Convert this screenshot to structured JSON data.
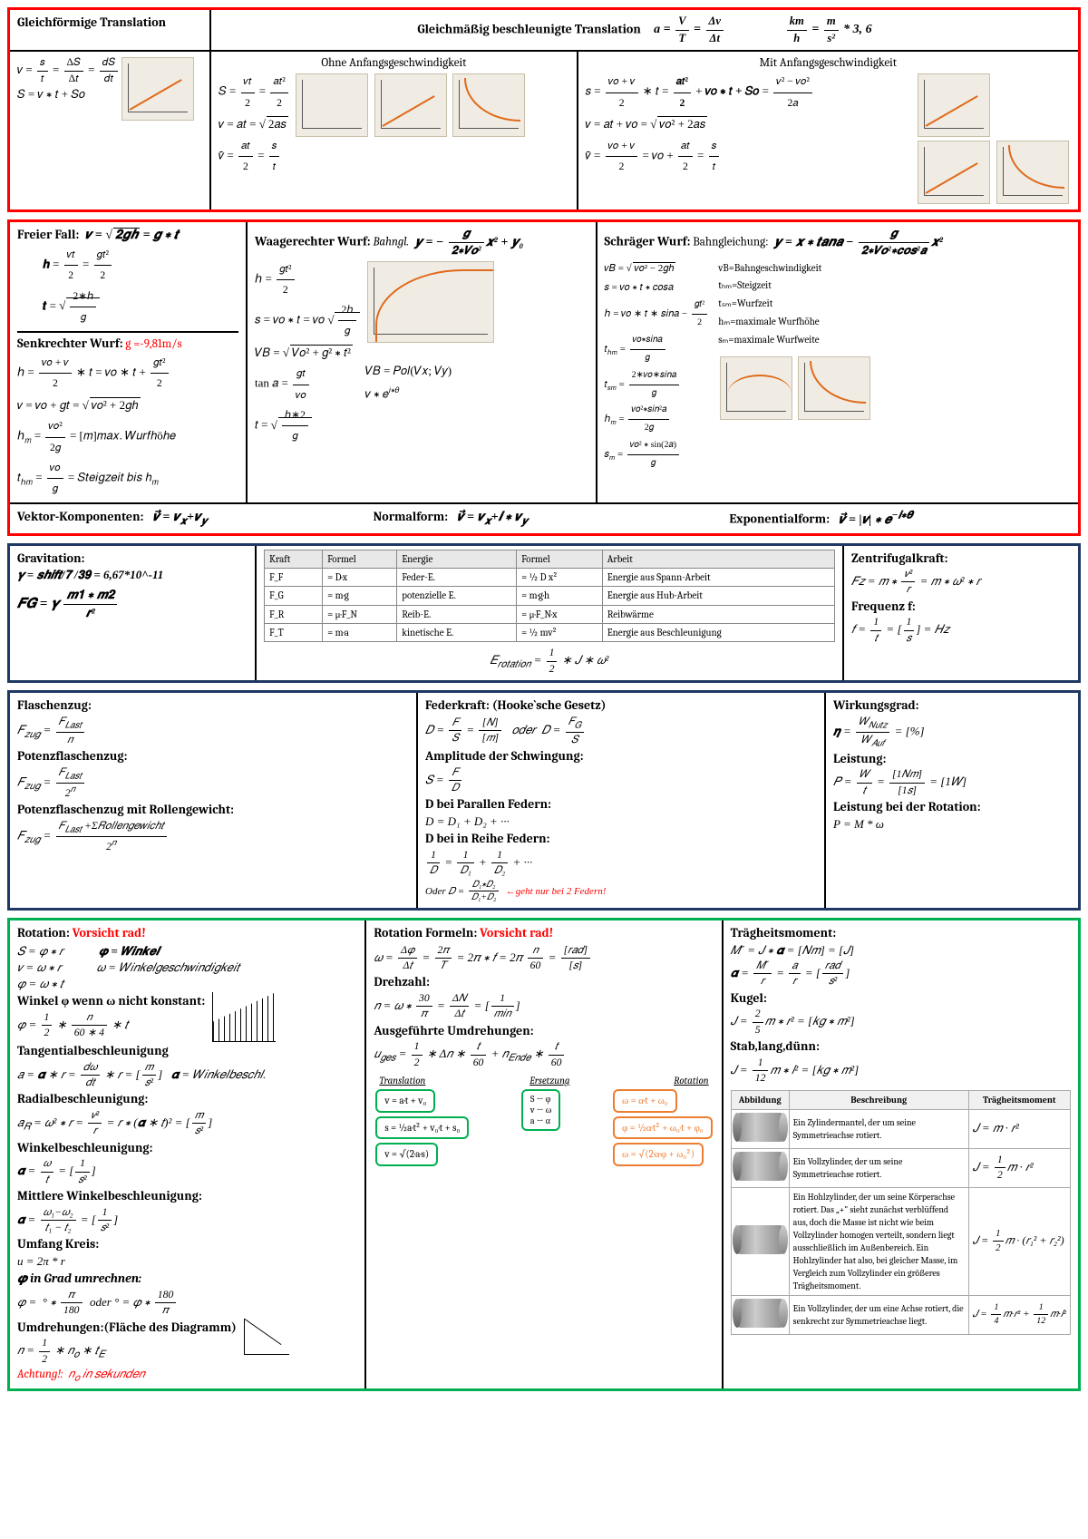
{
  "sec_a": {
    "h1": "Gleichförmige Translation",
    "h2": "Gleichmäßig beschleunigte Translation",
    "h2_f": "a = V/T = Δv/Δt",
    "h2_u": "km/h = m/s² * 3,6",
    "c1_f1": "v = s/t = ΔS/Δt = dS/dt",
    "c1_f2": "S = v * t + So",
    "c2_h": "Ohne Anfangsgeschwindigkeit",
    "c2_f1": "S = vt/2 = at²/2",
    "c2_f2": "v = at = √(2as)",
    "c2_f3": "v̄ = at/2 = s/t",
    "c3_h": "Mit Anfangsgeschwindigkeit",
    "c3_f1": "s = (vo+v)/2 * t = at²/2 + vo*t + So = (v²−vo²)/2a",
    "c3_f2": "v = at + vo = √(vo² + 2as)",
    "c3_f3": "v̄ = (vo+v)/2 = vo + at/2 = s/t"
  },
  "sec_b": {
    "c1_h1": "Freier Fall:",
    "c1_h1f": "v = √(2gh) = g * t",
    "c1_f1": "h = vt/2 = gt²/2",
    "c1_f2": "t = √(2*h/g)",
    "c1_h2": "Senkrechter Wurf:",
    "c1_h2r": "g =-9,81m/s",
    "c1_f3": "h = (vo+v)/2 * t = vo*t + gt²/2",
    "c1_f4": "v = vo + gt = √(vo² + 2gh)",
    "c1_f5": "hₘ = vo²/2g = [m] max. Wurfhöhe",
    "c1_f6": "tₕₘ = vo/g = Steigzeit bis hₘ",
    "c2_h": "Waagerechter Wurf:",
    "c2_hi": "Bahngl.",
    "c2_hf": "y = − g/(2*Vo²) x² + y₀",
    "c2_f1": "h = gt²/2",
    "c2_f2": "s = vo * t = vo √(2h/g)",
    "c2_f3": "VB = √(Vo² + g² * t²)",
    "c2_f4": "tan α = gt/vo",
    "c2_f5": "t = √(h*2/g)",
    "c2_f6": "VB = Pol(Vx; Vy)",
    "c2_f7": "v * e^(i*θ)",
    "c3_h": "Schräger Wurf:",
    "c3_hi": "Bahngleichung:",
    "c3_hf": "y = x * tanα − g/(2*Vo²*cos²α) x²",
    "c3_f1": "vB = √(vo² − 2gh)",
    "c3_l1": "vB=Bahngeschwindigkeit",
    "c3_f2": "s = vo * t * cosα",
    "c3_l2": "tₕₘ=Steigzeit",
    "c3_f3": "h = vo*t*sinα − gt²/2",
    "c3_l3": "tₛₘ=Wurfzeit",
    "c3_f4": "tₕₘ = vo*sinα / g",
    "c3_l4": "hₘ=maximale Wurfhöhe",
    "c3_f5": "tₛₘ = 2*vo*sinα / g",
    "c3_l5": "sₘ=maximale Wurfweite",
    "c3_f6": "hₘ = vo²*sin²α / 2g",
    "c3_f7": "sₘ = vo² * sin(2α) / g",
    "vec_h": "Vektor-Komponenten:",
    "vec_f": "v⃗ = vₓ+v_y",
    "nf_h": "Normalform:",
    "nf_f": "v⃗ = vₓ+i * v_y",
    "ef_h": "Exponentialform:",
    "ef_f": "v⃗ = |v| * e^(−i*θ)"
  },
  "sec_c": {
    "c1_h": "Gravitation:",
    "c1_f1": "γ = shift/7 /39 = 6,67*10^-11",
    "c1_f2": "FG = γ (m1 * m2)/r²",
    "tbl": {
      "head": [
        "Kraft",
        "Formel",
        "Energie",
        "Formel",
        "Arbeit"
      ],
      "rows": [
        [
          "F_F",
          "= D·x",
          "Feder-E.",
          "= ½ D x²",
          "Energie aus Spann-Arbeit"
        ],
        [
          "F_G",
          "= m·g",
          "potenzielle E.",
          "= m·g·h",
          "Energie aus Hub-Arbeit"
        ],
        [
          "F_R",
          "= μ·F_N",
          "Reib-E.",
          "= μ·F_N·x",
          "Reibwärme"
        ],
        [
          "F_T",
          "= m·a",
          "kinetische E.",
          "= ½ mv²",
          "Energie aus Beschleunigung"
        ]
      ],
      "below": "E_rotation = ½ * J * ω²"
    },
    "c3_h1": "Zentrifugalkraft:",
    "c3_f1": "Fz = m * v²/r = m * ω² * r",
    "c3_h2": "Frequenz f:",
    "c3_f2": "f = 1/t = [1/s] = Hz"
  },
  "sec_d": {
    "c1_h1": "Flaschenzug:",
    "c1_f1": "F_zug = F_Last / n",
    "c1_h2": "Potenzflaschenzug:",
    "c1_f2": "F_zug = F_Last / 2ⁿ",
    "c1_h3": "Potenzflaschenzug mit Rollengewicht:",
    "c1_f3": "F_zug = (F_Last + ΣRollengewicht) / 2ⁿ",
    "c2_h": "Federkraft: (Hooke`sche Gesetz)",
    "c2_f1": "D = F/S = [N]/[m]    oder   D = F_G/S",
    "c2_h2": "Amplitude der Schwingung:",
    "c2_f2": "S = F/D",
    "c2_h3": "D bei Parallen Federn:",
    "c2_f3": "D = D₁ + D₂ + ···",
    "c2_h4": "D bei in Reihe Federn:",
    "c2_f4": "1/D = 1/D₁ + 1/D₂ + ···",
    "c2_f5": "Oder D = (D₁*D₂)/(D₁+D₂)  ← geht nur bei 2 Federn!",
    "c3_h1": "Wirkungsgrad:",
    "c3_f1": "η = W_Nutz / W_Auf = [%]",
    "c3_h2": "Leistung:",
    "c3_f2": "P = W/t = [1Nm]/[1s] = [1W]",
    "c3_h3": "Leistung bei der Rotation:",
    "c3_f3": "P = M * ω"
  },
  "sec_e": {
    "c1_h": "Rotation:",
    "c1_hr": "Vorsicht rad!",
    "c1_f1": "S = φ * r",
    "c1_l1": "φ = Winkel",
    "c1_f2": "v = ω * r",
    "c1_l2": "ω = Winkelgeschwindigkeit",
    "c1_f3": "φ = ω * t",
    "c1_h2": "Winkel φ wenn ω nicht konstant:",
    "c1_f4": "φ = ½ * n/(60*4) * t",
    "c1_h3": "Tangentialbeschleunigung",
    "c1_f5": "a = α * r = dω/dt * r = [m/s²]",
    "c1_l5": "α = Winkelbeschl.",
    "c1_h4": "Radialbeschleunigung:",
    "c1_f6": "a_R = ω² * r = v²/r = r * (α*t)² = [m/s²]",
    "c1_h5": "Winkelbeschleunigung:",
    "c1_f7": "α = ω/t = [1/s²]",
    "c1_h6": "Mittlere Winkelbeschleunigung:",
    "c1_f8": "α = (ω₁−ω₂)/(t₁−t₂) = [1/s²]",
    "c1_h7": "Umfang Kreis:",
    "c1_f9": "u = 2π * r",
    "c1_h8": "φ in Grad umrechnen:",
    "c1_f10": "φ = ° * π/180   oder ° = φ * 180/π",
    "c1_h9": "Umdrehungen:(Fläche des Diagramm)",
    "c1_f11": "n = ½ * n_o * t_E",
    "c1_warn": "Achtung!:  n_o in sekunden",
    "c2_h": "Rotation Formeln:",
    "c2_hr": "Vorsicht rad!",
    "c2_f1": "ω = Δφ/Δt = 2π/T = 2π*f = 2π n/60 = [rad]/[s]",
    "c2_h2": "Drehzahl:",
    "c2_f2": "n = ω * 30/π = ΔN/Δt = [1/min]",
    "c2_h3": "Ausgeführte Umdrehungen:",
    "c2_f3": "u_ges = ½ * Δn * t/60 + n_Ende * t/60",
    "tr_h1": "Translation",
    "tr_h2": "Ersetzung",
    "tr_h3": "Rotation",
    "tr_r1a": "v = a·t + v₀",
    "tr_r1b": "S → φ\nv → ω\na → α",
    "tr_r1c": "ω = α·t + ω₀",
    "tr_r2a": "s = ½a·t² + v₀·t + s₀",
    "tr_r2c": "φ = ½α·t² + ω₀·t + φ₀",
    "tr_r3a": "v = √(2·a·s)",
    "tr_r3c": "ω = √(2·α·φ + ω₀²)",
    "c3_h": "Trägheitsmoment:",
    "c3_f1": "M´ = J * α = [Nm] = [J]",
    "c3_f2": "α = M´/r = a/r = [rad/s²]",
    "c3_h2": "Kugel:",
    "c3_f3": "J = ⅖ m * r² = [kg * m²]",
    "c3_h3": "Stab,lang,dünn:",
    "c3_f4": "J = 1/12 m * l² = [kg * m²]",
    "mt_head": [
      "Abbildung",
      "Beschreibung",
      "Trägheitsmoment"
    ],
    "mt_r1_d": "Ein Zylindermantel, der um seine Symmetrieachse rotiert.",
    "mt_r1_f": "J = m·r²",
    "mt_r2_d": "Ein Vollzylinder, der um seine Symmetrieachse rotiert.",
    "mt_r2_f": "J = ½ m·r²",
    "mt_r3_d": "Ein Hohlzylinder, der um seine Körperachse rotiert. Das „+\" sieht zunächst verblüffend aus, doch die Masse ist nicht wie beim Vollzylinder homogen verteilt, sondern liegt ausschließlich im Außenbereich. Ein Hohlzylinder hat also, bei gleicher Masse, im Vergleich zum Vollzylinder ein größeres Trägheitsmoment.",
    "mt_r3_f": "J = ½ m·(r₁²+r₂²)",
    "mt_r4_d": "Ein Vollzylinder, der um eine Achse rotiert, die senkrecht zur Symmetrieachse liegt.",
    "mt_r4_f": "J = ¼ m·r² + 1/12 m·l²"
  }
}
